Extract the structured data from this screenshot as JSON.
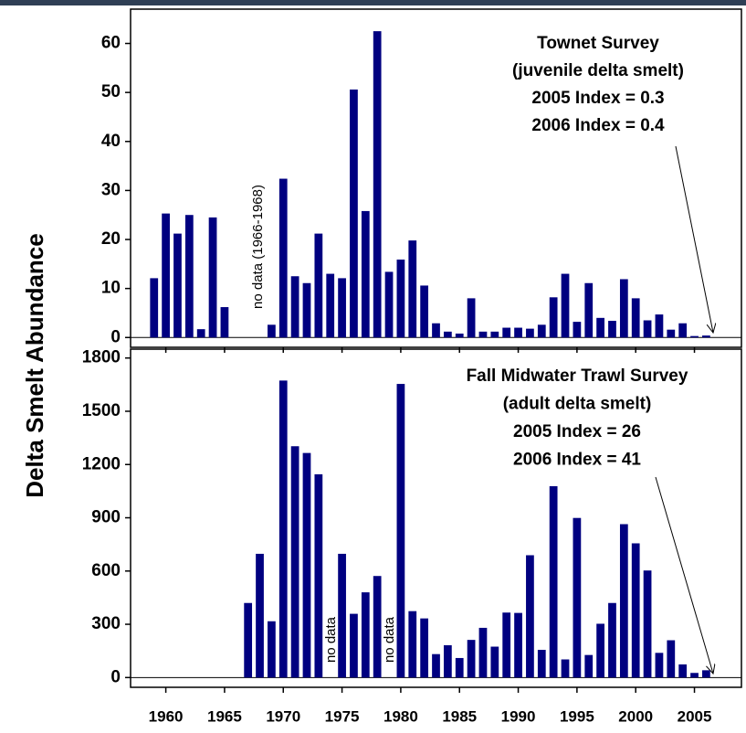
{
  "chart_data": [
    {
      "type": "bar",
      "ylabel": "Delta Smelt Abundance",
      "annotation_lines": [
        "Townet Survey",
        "(juvenile delta smelt)",
        "2005 Index = 0.3",
        "2006 Index = 0.4"
      ],
      "notes": [
        "no data (1966-1968)"
      ],
      "color": "#000080",
      "x": [
        1959,
        1960,
        1961,
        1962,
        1963,
        1964,
        1965,
        1966,
        1967,
        1968,
        1969,
        1970,
        1971,
        1972,
        1973,
        1974,
        1975,
        1976,
        1977,
        1978,
        1979,
        1980,
        1981,
        1982,
        1983,
        1984,
        1985,
        1986,
        1987,
        1988,
        1989,
        1990,
        1991,
        1992,
        1993,
        1994,
        1995,
        1996,
        1997,
        1998,
        1999,
        2000,
        2001,
        2002,
        2003,
        2004,
        2005,
        2006
      ],
      "values": [
        12.1,
        25.3,
        21.2,
        25,
        1.7,
        24.5,
        6.2,
        null,
        null,
        null,
        2.6,
        32.4,
        12.5,
        11.1,
        21.2,
        13,
        12.1,
        50.6,
        25.8,
        62.5,
        13.4,
        15.9,
        19.8,
        10.6,
        2.9,
        1.2,
        0.8,
        8,
        1.2,
        1.2,
        2,
        2,
        1.8,
        2.6,
        8.2,
        13,
        3.2,
        11.1,
        4,
        3.4,
        11.9,
        8,
        3.5,
        4.7,
        1.6,
        2.9,
        0.3,
        0.4
      ],
      "xlim": [
        1957,
        2009
      ],
      "xticks": [
        1960,
        1965,
        1970,
        1975,
        1980,
        1985,
        1990,
        1995,
        2000,
        2005
      ],
      "ylim": [
        -2,
        67
      ],
      "yticks": [
        0,
        10,
        20,
        30,
        40,
        50,
        60
      ]
    },
    {
      "type": "bar",
      "annotation_lines": [
        "Fall Midwater Trawl Survey",
        "(adult delta smelt)",
        "2005 Index = 26",
        "2006 Index = 41"
      ],
      "notes": [
        "no data",
        "no data"
      ],
      "color": "#000080",
      "x": [
        1967,
        1968,
        1969,
        1970,
        1971,
        1972,
        1973,
        1974,
        1975,
        1976,
        1977,
        1978,
        1979,
        1980,
        1981,
        1982,
        1983,
        1984,
        1985,
        1986,
        1987,
        1988,
        1989,
        1990,
        1991,
        1992,
        1993,
        1994,
        1995,
        1996,
        1997,
        1998,
        1999,
        2000,
        2001,
        2002,
        2003,
        2004,
        2005,
        2006
      ],
      "values": [
        420,
        697,
        317,
        1673,
        1303,
        1265,
        1145,
        null,
        697,
        359,
        480,
        572,
        null,
        1654,
        374,
        333,
        132,
        182,
        110,
        212,
        280,
        174,
        366,
        364,
        689,
        156,
        1078,
        102,
        899,
        127,
        303,
        420,
        864,
        756,
        603,
        139,
        210,
        74,
        26,
        41
      ],
      "xlim": [
        1957,
        2009
      ],
      "xticks": [
        1960,
        1965,
        1970,
        1975,
        1980,
        1985,
        1990,
        1995,
        2000,
        2005
      ],
      "ylim": [
        -55,
        1850
      ],
      "yticks": [
        0,
        300,
        600,
        900,
        1200,
        1500,
        1800
      ]
    }
  ]
}
